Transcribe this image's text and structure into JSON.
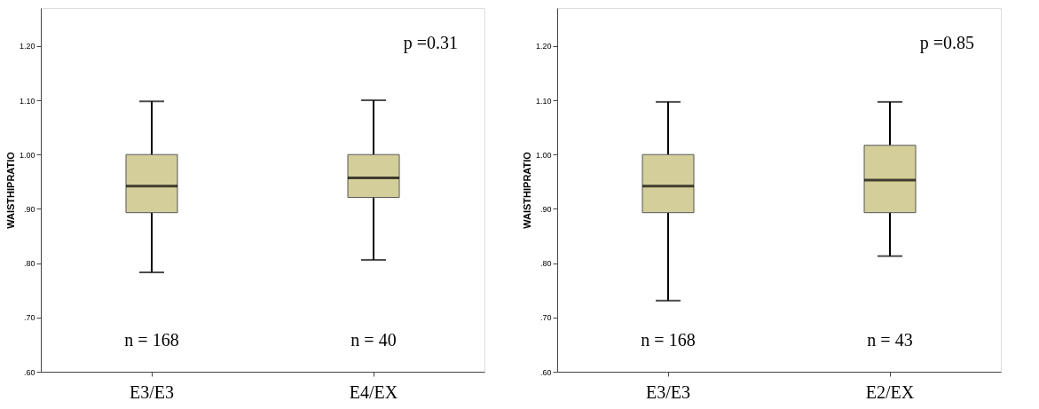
{
  "chart_data": [
    {
      "type": "box",
      "ylabel": "WAISTHIPRATIO",
      "categories": [
        "E3/E3",
        "E4/EX"
      ],
      "color": "#d4cf9a",
      "boxes": [
        {
          "low": 0.783,
          "q1": 0.893,
          "median": 0.942,
          "q3": 1.0,
          "high": 1.098
        },
        {
          "low": 0.806,
          "q1": 0.921,
          "median": 0.957,
          "q3": 1.0,
          "high": 1.1
        }
      ],
      "ylim": [
        0.6,
        1.27
      ],
      "yticks": [
        {
          "value": 0.6,
          "label": ".60"
        },
        {
          "value": 0.7,
          "label": ".70"
        },
        {
          "value": 0.8,
          "label": ".80"
        },
        {
          "value": 0.9,
          "label": ".90"
        },
        {
          "value": 1.0,
          "label": "1.00"
        },
        {
          "value": 1.1,
          "label": "1.10"
        },
        {
          "value": 1.2,
          "label": "1.20"
        }
      ],
      "grid": false,
      "annotations": [
        "p =0.31",
        "n = 168",
        "n = 40"
      ]
    },
    {
      "type": "box",
      "ylabel": "WAISTHIPRATIO",
      "categories": [
        "E3/E3",
        "E2/EX"
      ],
      "color": "#d4cf9a",
      "boxes": [
        {
          "low": 0.731,
          "q1": 0.893,
          "median": 0.942,
          "q3": 1.0,
          "high": 1.097
        },
        {
          "low": 0.813,
          "q1": 0.893,
          "median": 0.953,
          "q3": 1.017,
          "high": 1.097
        }
      ],
      "ylim": [
        0.6,
        1.27
      ],
      "yticks": [
        {
          "value": 0.6,
          "label": ".60"
        },
        {
          "value": 0.7,
          "label": ".70"
        },
        {
          "value": 0.8,
          "label": ".80"
        },
        {
          "value": 0.9,
          "label": ".90"
        },
        {
          "value": 1.0,
          "label": "1.00"
        },
        {
          "value": 1.1,
          "label": "1.10"
        },
        {
          "value": 1.2,
          "label": "1.20"
        }
      ],
      "grid": false,
      "annotations": [
        "p =0.85",
        "n = 168",
        "n = 43"
      ]
    }
  ]
}
